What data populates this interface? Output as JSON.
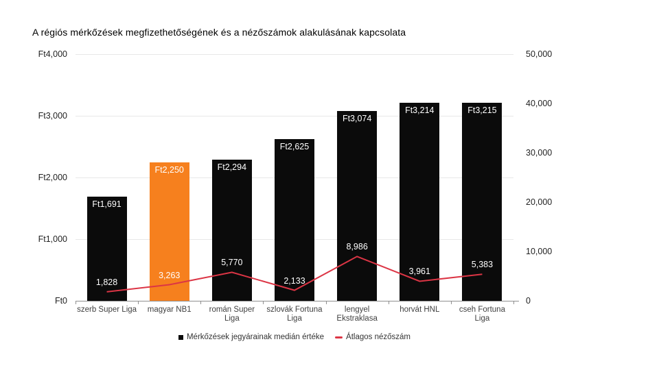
{
  "title": "A régiós mérkőzések megfizethetőségének és a nézőszámok alakulásának kapcsolata",
  "chart_data": {
    "type": "combo-bar-line",
    "categories": [
      "szerb Super Liga",
      "magyar NB1",
      "román Super Liga",
      "szlovák Fortuna Liga",
      "lengyel Ekstraklasa",
      "horvát HNL",
      "cseh Fortuna Liga"
    ],
    "series": [
      {
        "name": "Mérkőzések jegyárainak medián értéke",
        "type": "bar",
        "values": [
          1691,
          2250,
          2294,
          2625,
          3074,
          3214,
          3215
        ],
        "labels": [
          "Ft1,691",
          "Ft2,250",
          "Ft2,294",
          "Ft2,625",
          "Ft3,074",
          "Ft3,214",
          "Ft3,215"
        ],
        "axis": "left"
      },
      {
        "name": "Átlagos nézőszám",
        "type": "line",
        "values": [
          1828,
          3263,
          5770,
          2133,
          8986,
          3961,
          5383
        ],
        "labels": [
          "1,828",
          "3,263",
          "5,770",
          "2,133",
          "8,986",
          "3,961",
          "5,383"
        ],
        "axis": "right"
      }
    ],
    "left_axis": {
      "min": 0,
      "max": 4000,
      "ticks": [
        0,
        1000,
        2000,
        3000,
        4000
      ],
      "tick_labels": [
        "Ft0",
        "Ft1,000",
        "Ft2,000",
        "Ft3,000",
        "Ft4,000"
      ]
    },
    "right_axis": {
      "min": 0,
      "max": 50000,
      "ticks": [
        0,
        10000,
        20000,
        30000,
        40000,
        50000
      ],
      "tick_labels": [
        "0",
        "10,000",
        "20,000",
        "30,000",
        "40,000",
        "50,000"
      ]
    },
    "highlight_index": 1,
    "colors": {
      "bar": "#0b0b0b",
      "bar_highlight": "#f6801e",
      "line": "#dc3545",
      "gridline": "#e7e7e7",
      "axis_line": "#8f8f8f"
    },
    "grid": "horizontal-left-axis-only",
    "legend_position": "bottom-center"
  },
  "legend": {
    "items": [
      {
        "label": "Mérkőzések jegyárainak medián értéke",
        "marker": "square"
      },
      {
        "label": "Átlagos nézőszám",
        "marker": "dash"
      }
    ]
  }
}
